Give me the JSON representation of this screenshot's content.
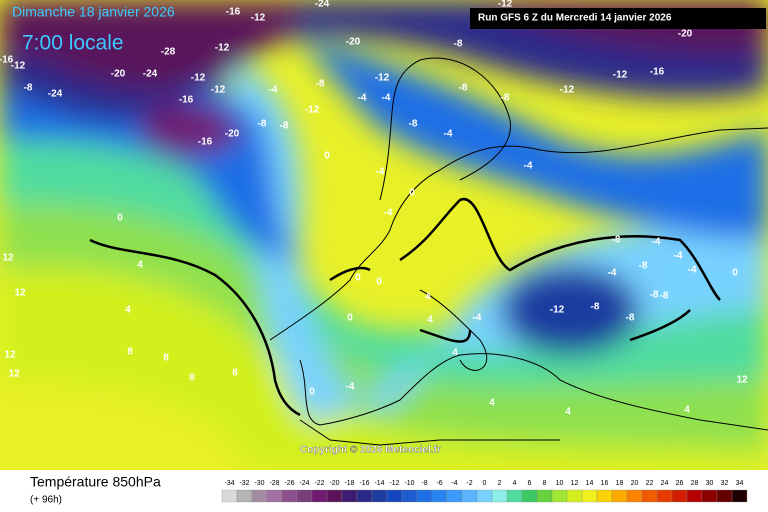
{
  "header": {
    "date": "Dimanche 18 janvier 2026",
    "time": "7:00 locale",
    "run": "Run GFS 6 Z du Mercredi 14 janvier 2026"
  },
  "copyright": "Copyright © 2026 Meteociel.fr",
  "footer": {
    "title": "Température 850hPa",
    "lead": "(+ 96h)"
  },
  "colorbar": {
    "values": [
      -34,
      -32,
      -30,
      -28,
      -26,
      -24,
      -22,
      -20,
      -18,
      -16,
      -14,
      -12,
      -10,
      -8,
      -6,
      -4,
      -2,
      0,
      2,
      4,
      6,
      8,
      10,
      12,
      14,
      16,
      18,
      20,
      22,
      24,
      26,
      28,
      30,
      32,
      34
    ],
    "colors": [
      "#d9d9d9",
      "#b4b4b4",
      "#a48ca4",
      "#a070a0",
      "#8c508c",
      "#783c78",
      "#701a70",
      "#5a145a",
      "#3c1c6e",
      "#2a2a8c",
      "#1e3ca0",
      "#1446be",
      "#1e5ad2",
      "#1e6ee6",
      "#2882f0",
      "#3c9bfa",
      "#5ab4ff",
      "#78d2ff",
      "#8cf0e6",
      "#50dca0",
      "#3cc864",
      "#64d23c",
      "#a0e632",
      "#d2f01e",
      "#f0f01e",
      "#fad200",
      "#faaa00",
      "#fa8200",
      "#f05a00",
      "#e63c00",
      "#d21e00",
      "#b40000",
      "#8c0000",
      "#640000",
      "#1e0000"
    ]
  },
  "contour_labels": [
    -16,
    -12,
    -24,
    -20,
    -8,
    -12,
    -20,
    -12,
    -16,
    -16,
    -12,
    -20,
    -24,
    -28,
    -16,
    -12,
    -12,
    -16,
    -20,
    -8,
    -24,
    -12,
    -4,
    -8,
    -8,
    -12,
    -8,
    -12,
    -4,
    -4,
    -8,
    -12,
    -8,
    -4,
    -8,
    0,
    -4,
    -4,
    0,
    -4,
    0,
    4,
    4,
    12,
    12,
    12,
    12,
    8,
    8,
    8,
    8,
    0,
    0,
    0,
    4,
    4,
    -4,
    -8,
    -4,
    -4,
    -4,
    -8,
    -12,
    -8,
    -8,
    -8,
    -4,
    0,
    12,
    4,
    4,
    0,
    -4,
    4,
    4,
    -8
  ]
}
